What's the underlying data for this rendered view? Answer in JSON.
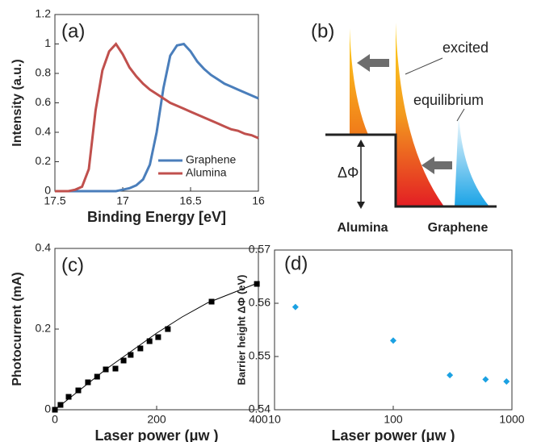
{
  "chart_data": [
    {
      "type": "line",
      "label": "(a)",
      "xlabel": "Binding Energy [eV]",
      "ylabel": "Intensity (a.u.)",
      "x": [
        17.5,
        17.45,
        17.4,
        17.35,
        17.3,
        17.25,
        17.2,
        17.15,
        17.1,
        17.05,
        17.0,
        16.95,
        16.9,
        16.85,
        16.8,
        16.75,
        16.7,
        16.65,
        16.6,
        16.55,
        16.5,
        16.45,
        16.4,
        16.35,
        16.3,
        16.25,
        16.2,
        16.15,
        16.1,
        16.05,
        16.0
      ],
      "series": [
        {
          "name": "Graphene",
          "color": "#4a7ebb",
          "values": [
            0,
            0,
            0,
            0,
            0,
            0,
            0,
            0,
            0,
            0,
            0.01,
            0.02,
            0.04,
            0.08,
            0.18,
            0.4,
            0.7,
            0.92,
            0.99,
            1.0,
            0.95,
            0.88,
            0.83,
            0.79,
            0.76,
            0.73,
            0.71,
            0.69,
            0.67,
            0.65,
            0.63
          ]
        },
        {
          "name": "Alumina",
          "color": "#c0504d",
          "values": [
            0,
            0,
            0,
            0.01,
            0.03,
            0.15,
            0.55,
            0.82,
            0.95,
            1.0,
            0.93,
            0.84,
            0.78,
            0.73,
            0.69,
            0.66,
            0.63,
            0.6,
            0.58,
            0.56,
            0.54,
            0.52,
            0.5,
            0.48,
            0.46,
            0.44,
            0.42,
            0.41,
            0.39,
            0.38,
            0.36
          ]
        }
      ],
      "xlim": [
        17.5,
        16
      ],
      "xticks": [
        17.5,
        17,
        16.5,
        16
      ],
      "ylim": [
        0,
        1.2
      ],
      "yticks": [
        0,
        0.2,
        0.4,
        0.6,
        0.8,
        1,
        1.2
      ],
      "legend": "lower right"
    },
    {
      "type": "scatter",
      "label": "(c)",
      "xlabel": "Laser power (μw )",
      "ylabel": "Photocurrent (mA)",
      "series": [
        {
          "color": "#000000",
          "marker": "square",
          "x": [
            0,
            11,
            27,
            46,
            65,
            83,
            100,
            119,
            135,
            149,
            168,
            186,
            203,
            222,
            308,
            397
          ],
          "values": [
            0,
            0.012,
            0.032,
            0.048,
            0.068,
            0.082,
            0.1,
            0.102,
            0.122,
            0.136,
            0.152,
            0.17,
            0.18,
            0.2,
            0.268,
            0.312
          ]
        },
        {
          "color": "#000000",
          "marker": "line",
          "x": [
            0,
            50,
            100,
            150,
            200,
            250,
            300,
            350,
            400
          ],
          "values": [
            0,
            0.05,
            0.1,
            0.145,
            0.19,
            0.23,
            0.265,
            0.29,
            0.315
          ]
        }
      ],
      "xlim": [
        0,
        400
      ],
      "xticks": [
        0,
        200,
        400
      ],
      "ylim": [
        0,
        0.4
      ],
      "yticks": [
        0,
        0.2,
        0.4
      ]
    },
    {
      "type": "scatter",
      "label": "(d)",
      "xlabel": "Laser power (μw )",
      "ylabel": "Barrier height ΔΦ (eV)",
      "series": [
        {
          "color": "#1ba1e2",
          "marker": "diamond",
          "x": [
            15,
            100,
            300,
            600,
            900
          ],
          "values": [
            0.5593,
            0.553,
            0.5465,
            0.5457,
            0.5453
          ]
        }
      ],
      "xlim": [
        10,
        1000
      ],
      "xticks": [
        10,
        100,
        1000
      ],
      "xlog": true,
      "ylim": [
        0.54,
        0.57
      ],
      "yticks": [
        0.54,
        0.55,
        0.56,
        0.57
      ]
    }
  ],
  "diagram": {
    "label": "(b)",
    "excited": "excited",
    "equilibrium": "equilibrium",
    "barrier": "ΔΦ",
    "left": "Alumina",
    "right": "Graphene"
  }
}
